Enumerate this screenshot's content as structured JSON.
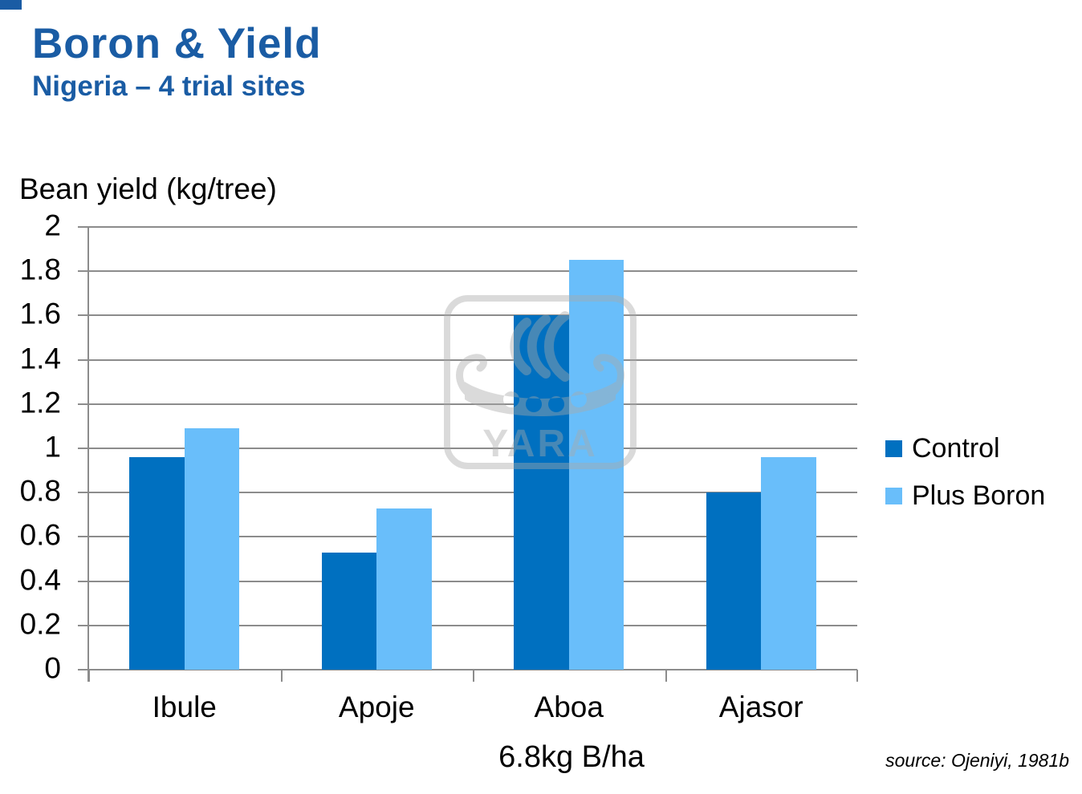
{
  "slide": {
    "title": "Boron & Yield",
    "subtitle": "Nigeria – 4 trial sites",
    "source": "source: Ojeniyi, 1981b",
    "watermark": "YARA"
  },
  "chart_data": {
    "type": "bar",
    "title": "Boron & Yield — Nigeria, 4 trial sites",
    "ylabel": "Bean yield (kg/tree)",
    "xlabel": "6.8kg B/ha",
    "categories": [
      "Ibule",
      "Apoje",
      "Aboa",
      "Ajasor"
    ],
    "series": [
      {
        "name": "Control",
        "color": "#0070c0",
        "values": [
          0.96,
          0.53,
          1.6,
          0.8
        ]
      },
      {
        "name": "Plus Boron",
        "color": "#69befa",
        "values": [
          1.09,
          0.73,
          1.85,
          0.96
        ]
      }
    ],
    "ylim": [
      0,
      2
    ],
    "ytick_step": 0.2,
    "yticks_top_to_bottom": [
      "2",
      "1.8",
      "1.6",
      "1.4",
      "1.2",
      "1",
      "0.8",
      "0.6",
      "0.4",
      "0.2",
      "0"
    ],
    "grid": true,
    "legend_position": "right"
  },
  "colors": {
    "accent_blue": "#1a5ca4",
    "bar_control": "#0070c0",
    "bar_plus_boron": "#69befa",
    "grid_gray": "#8c8c8c",
    "watermark_gray": "#a9a9a9",
    "text": "#000000"
  }
}
